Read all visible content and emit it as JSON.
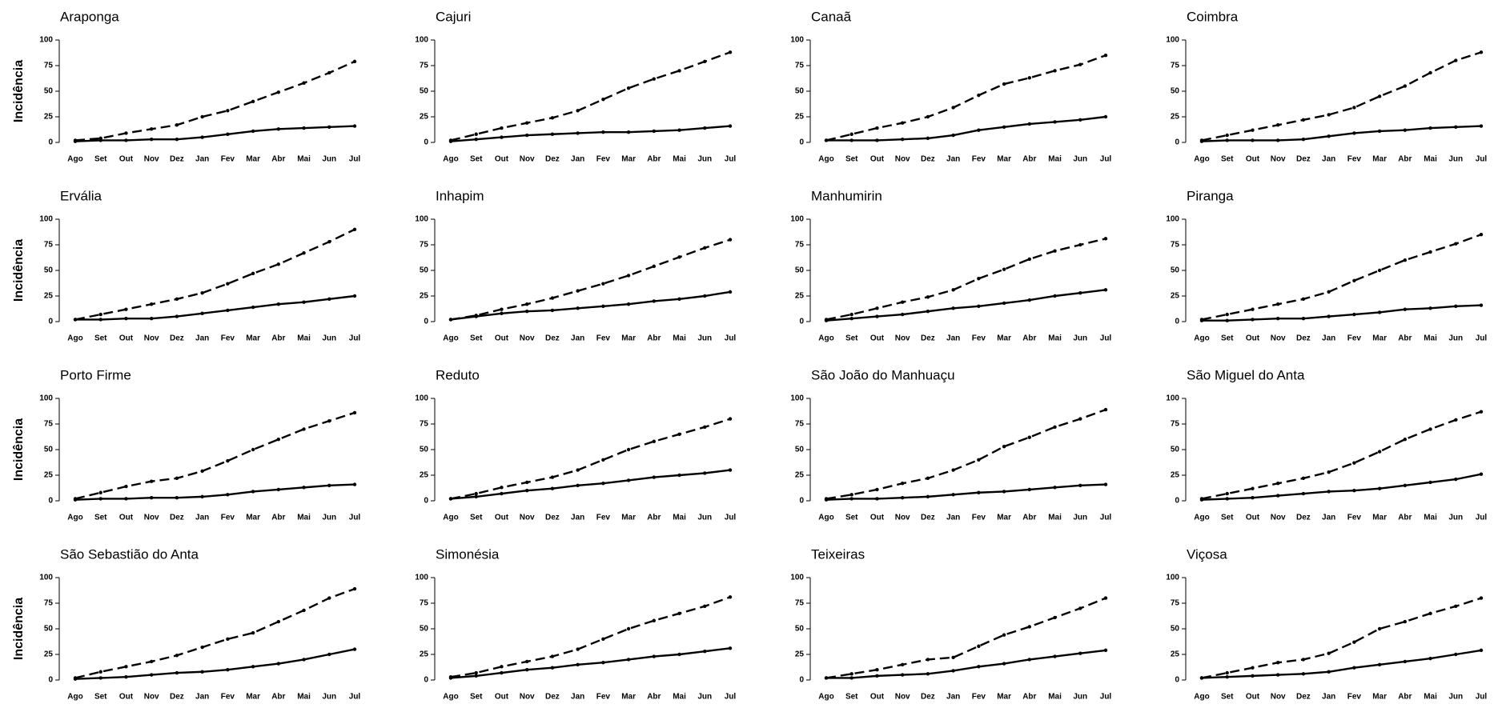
{
  "chart_data": [
    {
      "type": "line",
      "title": "Araponga",
      "ylabel": "Incidência",
      "categories": [
        "Ago",
        "Set",
        "Out",
        "Nov",
        "Dez",
        "Jan",
        "Fev",
        "Mar",
        "Abr",
        "Mai",
        "Jun",
        "Jul"
      ],
      "ylim": [
        0,
        100
      ],
      "yticks": [
        0,
        25,
        50,
        75,
        100
      ],
      "series": [
        {
          "color": "#000000",
          "style": "dashed",
          "values": [
            2,
            4,
            9,
            13,
            17,
            25,
            31,
            40,
            49,
            58,
            68,
            79
          ]
        },
        {
          "color": "#000000",
          "style": "solid",
          "values": [
            1,
            2,
            2,
            3,
            3,
            5,
            8,
            11,
            13,
            14,
            15,
            16
          ]
        }
      ]
    },
    {
      "type": "line",
      "title": "Cajuri",
      "categories": [
        "Ago",
        "Set",
        "Out",
        "Nov",
        "Dez",
        "Jan",
        "Fev",
        "Mar",
        "Abr",
        "Mai",
        "Jun",
        "Jul"
      ],
      "ylim": [
        0,
        100
      ],
      "yticks": [
        0,
        25,
        50,
        75,
        100
      ],
      "series": [
        {
          "color": "#000000",
          "style": "dashed",
          "values": [
            2,
            8,
            14,
            19,
            24,
            31,
            42,
            53,
            62,
            70,
            79,
            88
          ]
        },
        {
          "color": "#000000",
          "style": "solid",
          "values": [
            1,
            3,
            5,
            7,
            8,
            9,
            10,
            10,
            11,
            12,
            14,
            16
          ]
        }
      ]
    },
    {
      "type": "line",
      "title": "Canaã",
      "categories": [
        "Ago",
        "Set",
        "Out",
        "Nov",
        "Dez",
        "Jan",
        "Fev",
        "Mar",
        "Abr",
        "Mai",
        "Jun",
        "Jul"
      ],
      "ylim": [
        0,
        100
      ],
      "yticks": [
        0,
        25,
        50,
        75,
        100
      ],
      "series": [
        {
          "color": "#000000",
          "style": "dashed",
          "values": [
            2,
            8,
            14,
            19,
            25,
            34,
            46,
            57,
            63,
            70,
            76,
            85
          ]
        },
        {
          "color": "#000000",
          "style": "solid",
          "values": [
            2,
            2,
            2,
            3,
            4,
            7,
            12,
            15,
            18,
            20,
            22,
            25
          ]
        }
      ]
    },
    {
      "type": "line",
      "title": "Coimbra",
      "categories": [
        "Ago",
        "Set",
        "Out",
        "Nov",
        "Dez",
        "Jan",
        "Fev",
        "Mar",
        "Abr",
        "Mai",
        "Jun",
        "Jul"
      ],
      "ylim": [
        0,
        100
      ],
      "yticks": [
        0,
        25,
        50,
        75,
        100
      ],
      "series": [
        {
          "color": "#000000",
          "style": "dashed",
          "values": [
            2,
            7,
            12,
            17,
            22,
            27,
            34,
            45,
            55,
            68,
            80,
            88
          ]
        },
        {
          "color": "#000000",
          "style": "solid",
          "values": [
            1,
            2,
            2,
            2,
            3,
            6,
            9,
            11,
            12,
            14,
            15,
            16
          ]
        }
      ]
    },
    {
      "type": "line",
      "title": "Ervália",
      "ylabel": "Incidência",
      "categories": [
        "Ago",
        "Set",
        "Out",
        "Nov",
        "Dez",
        "Jan",
        "Fev",
        "Mar",
        "Abr",
        "Mai",
        "Jun",
        "Jul"
      ],
      "ylim": [
        0,
        100
      ],
      "yticks": [
        0,
        25,
        50,
        75,
        100
      ],
      "series": [
        {
          "color": "#000000",
          "style": "dashed",
          "values": [
            2,
            7,
            12,
            17,
            22,
            28,
            37,
            47,
            56,
            67,
            78,
            90
          ]
        },
        {
          "color": "#000000",
          "style": "solid",
          "values": [
            2,
            2,
            3,
            3,
            5,
            8,
            11,
            14,
            17,
            19,
            22,
            25
          ]
        }
      ]
    },
    {
      "type": "line",
      "title": "Inhapim",
      "categories": [
        "Ago",
        "Set",
        "Out",
        "Nov",
        "Dez",
        "Jan",
        "Fev",
        "Mar",
        "Abr",
        "Mai",
        "Jun",
        "Jul"
      ],
      "ylim": [
        0,
        100
      ],
      "yticks": [
        0,
        25,
        50,
        75,
        100
      ],
      "series": [
        {
          "color": "#000000",
          "style": "dashed",
          "values": [
            2,
            6,
            12,
            17,
            23,
            30,
            37,
            45,
            54,
            63,
            72,
            80
          ]
        },
        {
          "color": "#000000",
          "style": "solid",
          "values": [
            2,
            5,
            8,
            10,
            11,
            13,
            15,
            17,
            20,
            22,
            25,
            29
          ]
        }
      ]
    },
    {
      "type": "line",
      "title": "Manhumirin",
      "categories": [
        "Ago",
        "Set",
        "Out",
        "Nov",
        "Dez",
        "Jan",
        "Fev",
        "Mar",
        "Abr",
        "Mai",
        "Jun",
        "Jul"
      ],
      "ylim": [
        0,
        100
      ],
      "yticks": [
        0,
        25,
        50,
        75,
        100
      ],
      "series": [
        {
          "color": "#000000",
          "style": "dashed",
          "values": [
            2,
            7,
            13,
            19,
            24,
            31,
            42,
            51,
            61,
            69,
            75,
            81
          ]
        },
        {
          "color": "#000000",
          "style": "solid",
          "values": [
            1,
            3,
            5,
            7,
            10,
            13,
            15,
            18,
            21,
            25,
            28,
            31
          ]
        }
      ]
    },
    {
      "type": "line",
      "title": "Piranga",
      "categories": [
        "Ago",
        "Set",
        "Out",
        "Nov",
        "Dez",
        "Jan",
        "Fev",
        "Mar",
        "Abr",
        "Mai",
        "Jun",
        "Jul"
      ],
      "ylim": [
        0,
        100
      ],
      "yticks": [
        0,
        25,
        50,
        75,
        100
      ],
      "series": [
        {
          "color": "#000000",
          "style": "dashed",
          "values": [
            2,
            7,
            12,
            17,
            22,
            29,
            40,
            50,
            60,
            68,
            76,
            85
          ]
        },
        {
          "color": "#000000",
          "style": "solid",
          "values": [
            1,
            1,
            2,
            3,
            3,
            5,
            7,
            9,
            12,
            13,
            15,
            16
          ]
        }
      ]
    },
    {
      "type": "line",
      "title": "Porto Firme",
      "ylabel": "Incidência",
      "categories": [
        "Ago",
        "Set",
        "Out",
        "Nov",
        "Dez",
        "Jan",
        "Fev",
        "Mar",
        "Abr",
        "Mai",
        "Jun",
        "Jul"
      ],
      "ylim": [
        0,
        100
      ],
      "yticks": [
        0,
        25,
        50,
        75,
        100
      ],
      "series": [
        {
          "color": "#000000",
          "style": "dashed",
          "values": [
            2,
            8,
            14,
            19,
            22,
            29,
            39,
            50,
            60,
            70,
            78,
            86
          ]
        },
        {
          "color": "#000000",
          "style": "solid",
          "values": [
            1,
            2,
            2,
            3,
            3,
            4,
            6,
            9,
            11,
            13,
            15,
            16
          ]
        }
      ]
    },
    {
      "type": "line",
      "title": "Reduto",
      "categories": [
        "Ago",
        "Set",
        "Out",
        "Nov",
        "Dez",
        "Jan",
        "Fev",
        "Mar",
        "Abr",
        "Mai",
        "Jun",
        "Jul"
      ],
      "ylim": [
        0,
        100
      ],
      "yticks": [
        0,
        25,
        50,
        75,
        100
      ],
      "series": [
        {
          "color": "#000000",
          "style": "dashed",
          "values": [
            2,
            7,
            13,
            18,
            23,
            30,
            40,
            50,
            58,
            65,
            72,
            80
          ]
        },
        {
          "color": "#000000",
          "style": "solid",
          "values": [
            2,
            4,
            7,
            10,
            12,
            15,
            17,
            20,
            23,
            25,
            27,
            30
          ]
        }
      ]
    },
    {
      "type": "line",
      "title": "São João do Manhuaçu",
      "categories": [
        "Ago",
        "Set",
        "Out",
        "Nov",
        "Dez",
        "Jan",
        "Fev",
        "Mar",
        "Abr",
        "Mai",
        "Jun",
        "Jul"
      ],
      "ylim": [
        0,
        100
      ],
      "yticks": [
        0,
        25,
        50,
        75,
        100
      ],
      "series": [
        {
          "color": "#000000",
          "style": "dashed",
          "values": [
            2,
            6,
            11,
            17,
            22,
            30,
            40,
            53,
            62,
            72,
            80,
            89
          ]
        },
        {
          "color": "#000000",
          "style": "solid",
          "values": [
            1,
            2,
            2,
            3,
            4,
            6,
            8,
            9,
            11,
            13,
            15,
            16
          ]
        }
      ]
    },
    {
      "type": "line",
      "title": "São Miguel do Anta",
      "categories": [
        "Ago",
        "Set",
        "Out",
        "Nov",
        "Dez",
        "Jan",
        "Fev",
        "Mar",
        "Abr",
        "Mai",
        "Jun",
        "Jul"
      ],
      "ylim": [
        0,
        100
      ],
      "yticks": [
        0,
        25,
        50,
        75,
        100
      ],
      "series": [
        {
          "color": "#000000",
          "style": "dashed",
          "values": [
            2,
            7,
            12,
            17,
            22,
            28,
            37,
            48,
            60,
            70,
            79,
            87
          ]
        },
        {
          "color": "#000000",
          "style": "solid",
          "values": [
            1,
            2,
            3,
            5,
            7,
            9,
            10,
            12,
            15,
            18,
            21,
            26
          ]
        }
      ]
    },
    {
      "type": "line",
      "title": "São Sebastião do Anta",
      "ylabel": "Incidência",
      "categories": [
        "Ago",
        "Set",
        "Out",
        "Nov",
        "Dez",
        "Jan",
        "Fev",
        "Mar",
        "Abr",
        "Mai",
        "Jun",
        "Jul"
      ],
      "ylim": [
        0,
        100
      ],
      "yticks": [
        0,
        25,
        50,
        75,
        100
      ],
      "series": [
        {
          "color": "#000000",
          "style": "dashed",
          "values": [
            2,
            8,
            13,
            18,
            24,
            32,
            40,
            46,
            57,
            68,
            80,
            89
          ]
        },
        {
          "color": "#000000",
          "style": "solid",
          "values": [
            1,
            2,
            3,
            5,
            7,
            8,
            10,
            13,
            16,
            20,
            25,
            30
          ]
        }
      ]
    },
    {
      "type": "line",
      "title": "Simonésia",
      "categories": [
        "Ago",
        "Set",
        "Out",
        "Nov",
        "Dez",
        "Jan",
        "Fev",
        "Mar",
        "Abr",
        "Mai",
        "Jun",
        "Jul"
      ],
      "ylim": [
        0,
        100
      ],
      "yticks": [
        0,
        25,
        50,
        75,
        100
      ],
      "series": [
        {
          "color": "#000000",
          "style": "dashed",
          "values": [
            3,
            7,
            13,
            18,
            23,
            30,
            40,
            50,
            58,
            65,
            72,
            81
          ]
        },
        {
          "color": "#000000",
          "style": "solid",
          "values": [
            2,
            4,
            7,
            10,
            12,
            15,
            17,
            20,
            23,
            25,
            28,
            31
          ]
        }
      ]
    },
    {
      "type": "line",
      "title": "Teixeiras",
      "categories": [
        "Ago",
        "Set",
        "Out",
        "Nov",
        "Dez",
        "Jan",
        "Fev",
        "Mar",
        "Abr",
        "Mai",
        "Jun",
        "Jul"
      ],
      "ylim": [
        0,
        100
      ],
      "yticks": [
        0,
        25,
        50,
        75,
        100
      ],
      "series": [
        {
          "color": "#000000",
          "style": "dashed",
          "values": [
            2,
            6,
            10,
            15,
            20,
            22,
            33,
            44,
            52,
            61,
            70,
            80
          ]
        },
        {
          "color": "#000000",
          "style": "solid",
          "values": [
            2,
            2,
            4,
            5,
            6,
            9,
            13,
            16,
            20,
            23,
            26,
            29
          ]
        }
      ]
    },
    {
      "type": "line",
      "title": "Viçosa",
      "categories": [
        "Ago",
        "Set",
        "Out",
        "Nov",
        "Dez",
        "Jan",
        "Fev",
        "Mar",
        "Abr",
        "Mai",
        "Jun",
        "Jul"
      ],
      "ylim": [
        0,
        100
      ],
      "yticks": [
        0,
        25,
        50,
        75,
        100
      ],
      "series": [
        {
          "color": "#000000",
          "style": "dashed",
          "values": [
            2,
            7,
            12,
            17,
            20,
            26,
            37,
            50,
            57,
            65,
            72,
            80
          ]
        },
        {
          "color": "#000000",
          "style": "solid",
          "values": [
            2,
            3,
            4,
            5,
            6,
            8,
            12,
            15,
            18,
            21,
            25,
            29
          ]
        }
      ]
    }
  ]
}
